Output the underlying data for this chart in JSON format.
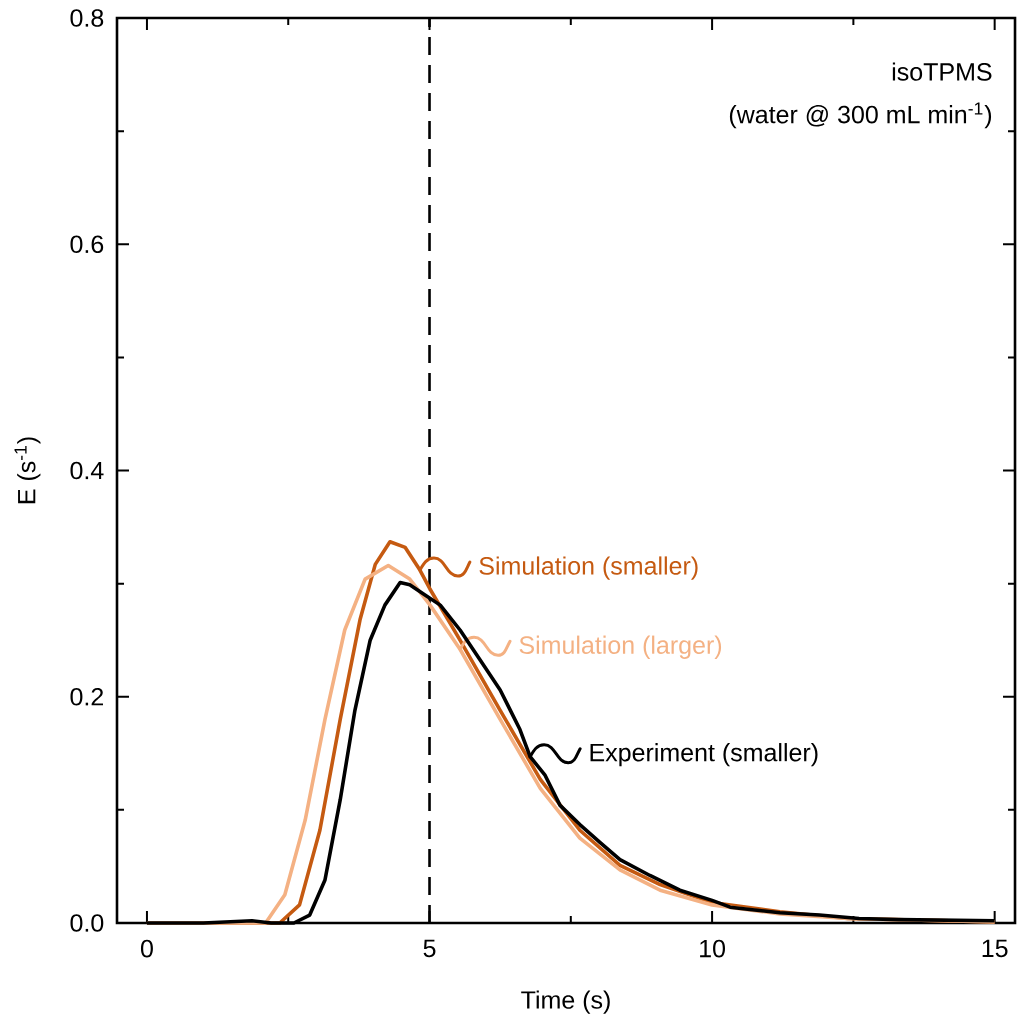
{
  "chart_data": {
    "type": "line",
    "xlabel": "Time (s)",
    "ylabel": "E (s$^{-1}$)",
    "xlim": [
      -0.53,
      15.36
    ],
    "ylim": [
      0,
      0.8
    ],
    "xticks": [
      0,
      5,
      10,
      15
    ],
    "yticks": [
      {
        "value": 0,
        "label": "0.0"
      },
      0.2,
      0.4,
      0.6,
      0.8
    ],
    "legend": "right",
    "annotations": [
      "isoTPMS",
      "(water @ 300 mL min$^{-1}$)"
    ],
    "ref_lines": [
      {
        "axis": "x",
        "value": 5,
        "color": "#000000",
        "line_style": "dashed"
      }
    ],
    "series": [
      {
        "name": "Simulation (smaller)",
        "color": "#c55a11",
        "x": [
          0,
          1,
          2,
          2.35,
          2.7,
          3.06,
          3.42,
          3.77,
          4.04,
          4.3,
          4.57,
          4.83,
          5.01,
          5.54,
          6.25,
          6.96,
          7.66,
          8.37,
          9.08,
          10,
          11.2,
          12.4,
          15
        ],
        "values": [
          0,
          0,
          0,
          0,
          0.016,
          0.082,
          0.18,
          0.268,
          0.317,
          0.337,
          0.332,
          0.312,
          0.295,
          0.25,
          0.188,
          0.127,
          0.082,
          0.051,
          0.034,
          0.018,
          0.01,
          0.004,
          0.001
        ]
      },
      {
        "name": "Simulation (larger)",
        "color": "#f4b183",
        "x": [
          0,
          1,
          2,
          2.1,
          2.44,
          2.8,
          3.15,
          3.5,
          3.86,
          4.27,
          4.65,
          5.01,
          5.54,
          6.25,
          6.96,
          7.66,
          8.37,
          9.08,
          10,
          11.2,
          12.4,
          15
        ],
        "values": [
          0,
          0,
          0,
          0,
          0.025,
          0.091,
          0.18,
          0.259,
          0.304,
          0.316,
          0.304,
          0.281,
          0.242,
          0.18,
          0.119,
          0.075,
          0.047,
          0.029,
          0.016,
          0.008,
          0.004,
          0.001
        ]
      },
      {
        "name": "Experiment (smaller)",
        "color": "#000000",
        "x": [
          0,
          1,
          1.86,
          2.2,
          2.6,
          2.88,
          3.15,
          3.42,
          3.68,
          3.95,
          4.21,
          4.48,
          4.65,
          4.92,
          5.19,
          5.54,
          5.89,
          6.25,
          6.6,
          6.78,
          7.04,
          7.31,
          7.66,
          8.02,
          8.37,
          8.9,
          9.43,
          10,
          10.32,
          10.67,
          11.2,
          11.9,
          12.6,
          13.3,
          15
        ],
        "values": [
          0,
          0,
          0.002,
          0,
          0,
          0.007,
          0.038,
          0.109,
          0.188,
          0.25,
          0.281,
          0.301,
          0.299,
          0.29,
          0.281,
          0.259,
          0.233,
          0.206,
          0.171,
          0.147,
          0.131,
          0.104,
          0.087,
          0.071,
          0.056,
          0.042,
          0.029,
          0.02,
          0.014,
          0.012,
          0.009,
          0.007,
          0.004,
          0.003,
          0.002
        ]
      }
    ]
  }
}
